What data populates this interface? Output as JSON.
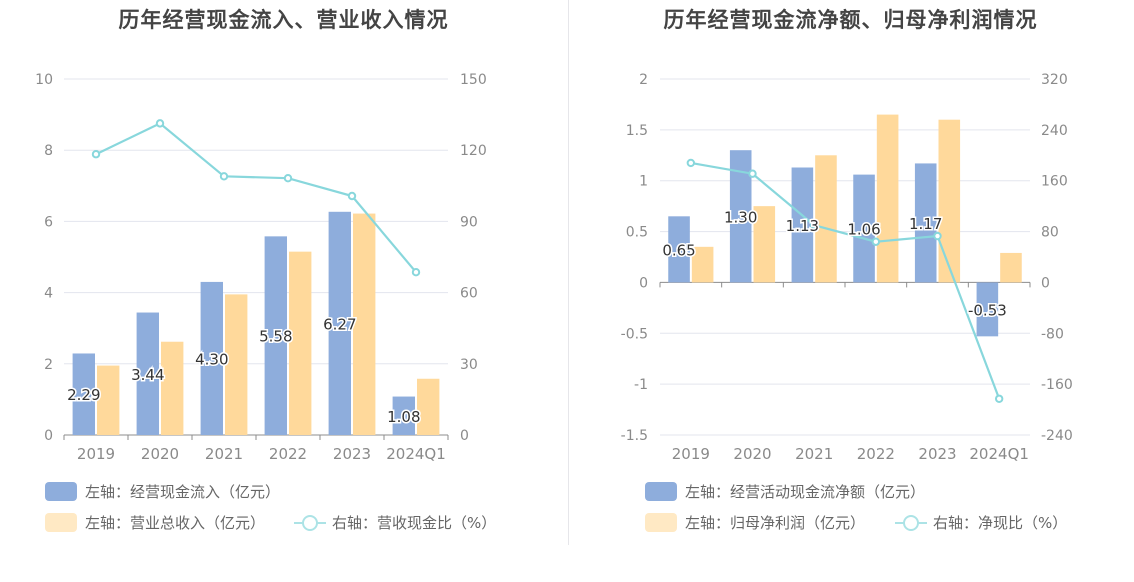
{
  "chart_data": [
    {
      "type": "bar",
      "title": "历年经营现金流入、营业收入情况",
      "categories": [
        "2019",
        "2020",
        "2021",
        "2022",
        "2023",
        "2024Q1"
      ],
      "left_axis": {
        "ylim": [
          0,
          10
        ],
        "ticks": [
          "0",
          "2",
          "4",
          "6",
          "8",
          "10"
        ]
      },
      "right_axis": {
        "ylim": [
          0,
          150
        ],
        "ticks": [
          "0",
          "30",
          "60",
          "90",
          "120",
          "150"
        ]
      },
      "series": [
        {
          "name": "左轴：经营现金流入（亿元）",
          "axis": "left",
          "kind": "bar",
          "color": "#8eaddc",
          "values": [
            2.29,
            3.44,
            4.3,
            5.58,
            6.27,
            1.08
          ],
          "labels": [
            "2.29",
            "3.44",
            "4.30",
            "5.58",
            "6.27",
            "1.08"
          ]
        },
        {
          "name": "左轴：营业总收入（亿元）",
          "axis": "left",
          "kind": "bar",
          "color": "#ffd99b",
          "values": [
            1.95,
            2.62,
            3.95,
            5.15,
            6.22,
            1.58
          ]
        },
        {
          "name": "右轴：营收现金比（%）",
          "axis": "right",
          "kind": "line",
          "color": "#88d7dc",
          "values": [
            118.3,
            131.3,
            109.0,
            108.2,
            100.7,
            68.6
          ]
        }
      ],
      "grid": true,
      "legend_position": "bottom-left"
    },
    {
      "type": "bar",
      "title": "历年经营现金流净额、归母净利润情况",
      "categories": [
        "2019",
        "2020",
        "2021",
        "2022",
        "2023",
        "2024Q1"
      ],
      "left_axis": {
        "ylim": [
          -1.5,
          2
        ],
        "ticks": [
          "-1.5",
          "-1",
          "-0.5",
          "0",
          "0.5",
          "1",
          "1.5",
          "2"
        ]
      },
      "right_axis": {
        "ylim": [
          -240,
          320
        ],
        "ticks": [
          "-240",
          "-160",
          "-80",
          "0",
          "80",
          "160",
          "240",
          "320"
        ]
      },
      "series": [
        {
          "name": "左轴：经营活动现金流净额（亿元）",
          "axis": "left",
          "kind": "bar",
          "color": "#8eaddc",
          "values": [
            0.65,
            1.3,
            1.13,
            1.06,
            1.17,
            -0.53
          ],
          "labels": [
            "0.65",
            "1.30",
            "1.13",
            "1.06",
            "1.17",
            "-0.53"
          ]
        },
        {
          "name": "左轴：归母净利润（亿元）",
          "axis": "left",
          "kind": "bar",
          "color": "#ffd99b",
          "values": [
            0.35,
            0.75,
            1.25,
            1.65,
            1.6,
            0.29
          ]
        },
        {
          "name": "右轴：净现比（%）",
          "axis": "right",
          "kind": "line",
          "color": "#88d7dc",
          "values": [
            188,
            171,
            90,
            64,
            73,
            -183
          ]
        }
      ],
      "grid": true,
      "legend_position": "bottom-left"
    }
  ]
}
